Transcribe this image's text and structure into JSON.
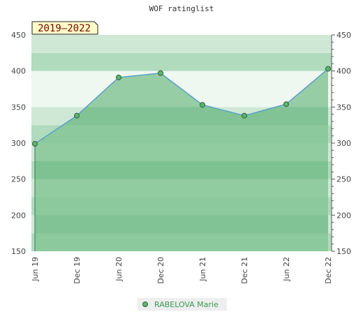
{
  "chart_data": {
    "type": "area",
    "title": "WOF ratinglist",
    "period_badge": "2019–2022",
    "x_labels": [
      "Jun 19",
      "Dec 19",
      "Jun 20",
      "Dec 20",
      "Jun 21",
      "Dec 21",
      "Jun 22",
      "Dec 22"
    ],
    "ylim": [
      150,
      450
    ],
    "y_ticks": [
      150,
      200,
      250,
      300,
      350,
      400,
      450
    ],
    "y_ticks_right": [
      150,
      200,
      250,
      300,
      350,
      400,
      450
    ],
    "series": [
      {
        "name": "RABELOVA Marie",
        "values": [
          299,
          338,
          391,
          397,
          353,
          338,
          354,
          403
        ]
      }
    ],
    "colors": {
      "line": "#5aa0c8",
      "area": "#86c596",
      "marker_fill": "#5cb56e",
      "marker_stroke": "#2f5f3a",
      "band_light": "#eef7f0",
      "band_mid": "#cfe8d6",
      "band_dark": "#b1dbbd",
      "badge_bg": "#ffffc8",
      "badge_text": "#7a0000",
      "legend_bg": "#eeeeee",
      "legend_text": "#3a9a55"
    },
    "grid": true,
    "legend_position": "bottom-center"
  }
}
